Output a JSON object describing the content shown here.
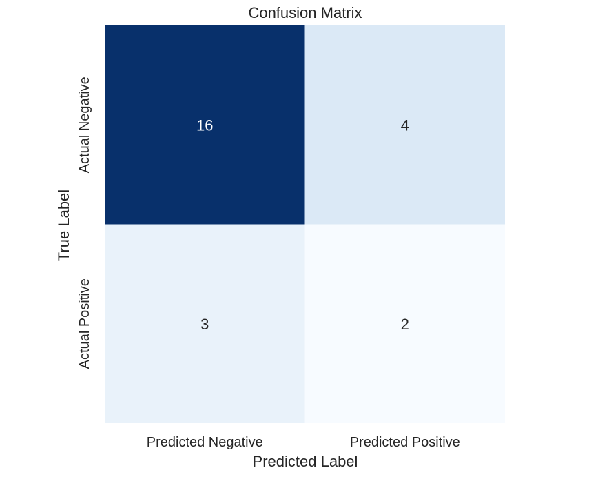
{
  "chart_data": {
    "type": "heatmap",
    "title": "Confusion Matrix",
    "xlabel": "Predicted Label",
    "ylabel": "True Label",
    "x_categories": [
      "Predicted Negative",
      "Predicted Positive"
    ],
    "y_categories": [
      "Actual Negative",
      "Actual Positive"
    ],
    "values": [
      [
        16,
        4
      ],
      [
        3,
        2
      ]
    ],
    "colormap": "Blues",
    "colorbar": false,
    "colors": {
      "low": "#f7fbff",
      "high": "#08306b",
      "text_dark": "#262626",
      "text_light": "#ffffff"
    }
  }
}
